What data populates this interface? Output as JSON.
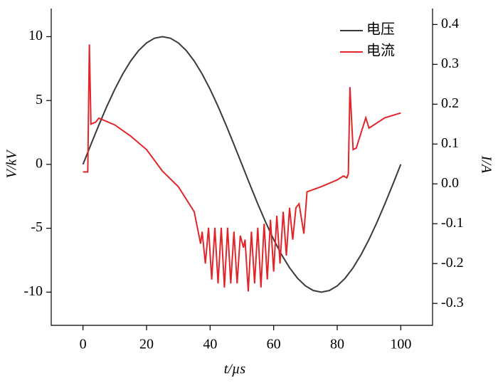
{
  "chart_data": {
    "type": "line",
    "xlabel": "t/µs",
    "ylabel": "V/kV",
    "y2label": "I/A",
    "xlim": [
      -10,
      110
    ],
    "xticks": [
      0,
      20,
      40,
      60,
      80,
      100
    ],
    "ylim": [
      -12.6,
      12.2
    ],
    "yticks": [
      -10,
      -5,
      0,
      5,
      10
    ],
    "y2lim": [
      -0.355,
      0.44
    ],
    "y2ticks": [
      -0.3,
      -0.2,
      -0.1,
      {
        "value": 0,
        "label": "0.0"
      },
      0.1,
      0.2,
      0.3,
      0.4
    ],
    "legend": "upper right",
    "series": [
      {
        "name": "电压",
        "color": "#3a3a3a",
        "axis": "y",
        "x": [
          0,
          2.5,
          5,
          7.5,
          10,
          12.5,
          15,
          17.5,
          20,
          22.5,
          25,
          27.5,
          30,
          32.5,
          35,
          37.5,
          40,
          42.5,
          45,
          47.5,
          50,
          52.5,
          55,
          57.5,
          60,
          62.5,
          65,
          67.5,
          70,
          72.5,
          75,
          77.5,
          80,
          82.5,
          85,
          87.5,
          90,
          92.5,
          95,
          97.5,
          100
        ],
        "values": [
          0,
          1.564,
          3.09,
          4.54,
          5.878,
          7.071,
          8.09,
          8.91,
          9.511,
          9.877,
          10,
          9.877,
          9.511,
          8.91,
          8.09,
          7.071,
          5.878,
          4.54,
          3.09,
          1.564,
          0,
          -1.564,
          -3.09,
          -4.54,
          -5.878,
          -7.071,
          -8.09,
          -8.91,
          -9.511,
          -9.877,
          -10,
          -9.877,
          -9.511,
          -8.91,
          -8.09,
          -7.071,
          -5.878,
          -4.54,
          -3.09,
          -1.564,
          0
        ]
      },
      {
        "name": "电流",
        "color": "#e0262b",
        "axis": "y2",
        "x": [
          0,
          1.5,
          2,
          2.5,
          4,
          5,
          10,
          15,
          20,
          25,
          30,
          35,
          36,
          37,
          37.5,
          38.5,
          39.5,
          40.5,
          41.5,
          42.5,
          43.5,
          44.5,
          45.5,
          46.5,
          47.5,
          48.5,
          49.5,
          50.5,
          51,
          52,
          53,
          54,
          55,
          56,
          57,
          58,
          59,
          60,
          61,
          62,
          63,
          64,
          65,
          66,
          67,
          68,
          69.5,
          70.5,
          75,
          80,
          82,
          83,
          83.5,
          84,
          85,
          86,
          89,
          90,
          95,
          100
        ],
        "values": [
          0.03,
          0.03,
          0.35,
          0.15,
          0.155,
          0.165,
          0.148,
          0.12,
          0.086,
          0.032,
          -0.007,
          -0.07,
          -0.11,
          -0.15,
          -0.12,
          -0.2,
          -0.11,
          -0.24,
          -0.11,
          -0.25,
          -0.11,
          -0.26,
          -0.11,
          -0.25,
          -0.12,
          -0.25,
          -0.13,
          -0.16,
          -0.14,
          -0.27,
          -0.12,
          -0.25,
          -0.11,
          -0.26,
          -0.1,
          -0.24,
          -0.09,
          -0.22,
          -0.08,
          -0.2,
          -0.07,
          -0.18,
          -0.06,
          -0.14,
          -0.06,
          -0.05,
          -0.125,
          -0.02,
          -0.007,
          0.01,
          0.02,
          0.015,
          0.025,
          0.243,
          0.086,
          0.09,
          0.166,
          0.14,
          0.166,
          0.178
        ]
      }
    ]
  }
}
